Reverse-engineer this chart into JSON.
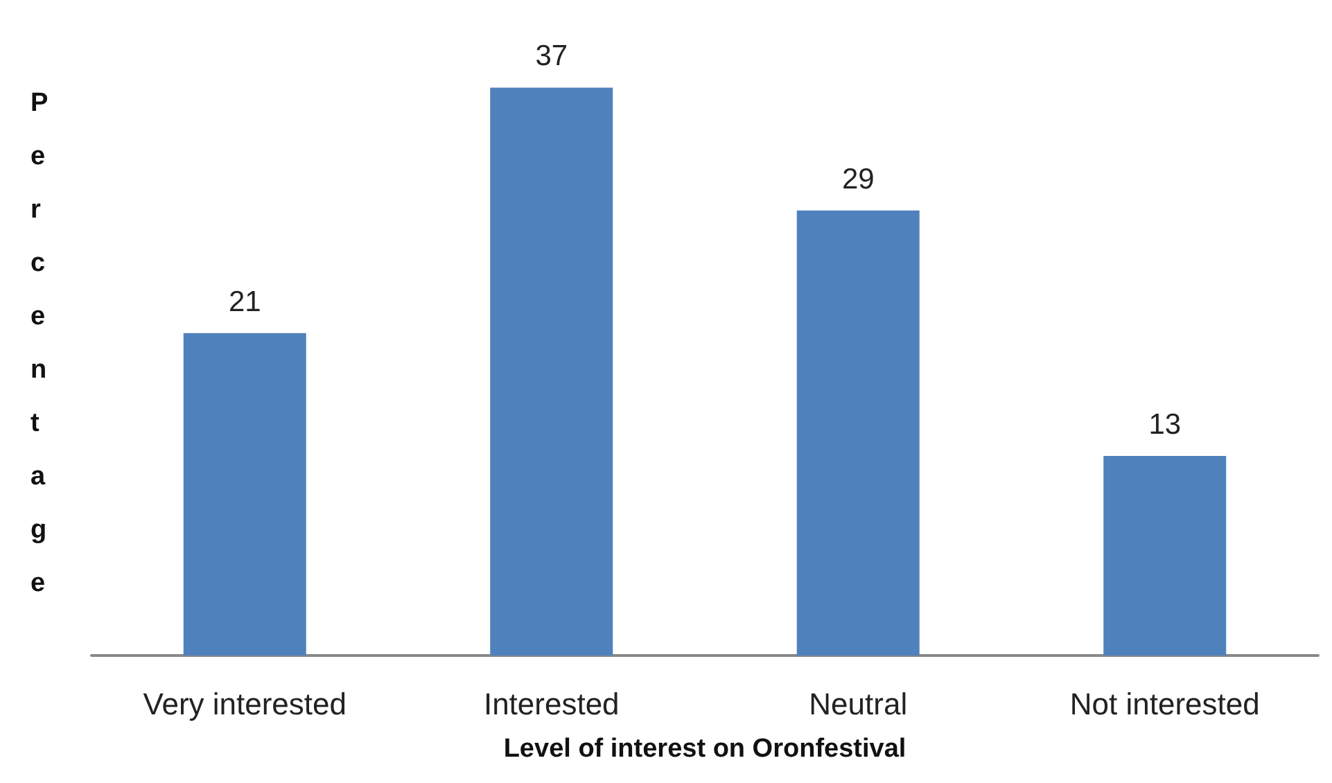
{
  "chart_data": {
    "type": "bar",
    "xlabel": "Level of interest on Oronfestival",
    "ylabel": "Percentage",
    "categories": [
      "Very interested",
      "Interested",
      "Neutral",
      "Not interested"
    ],
    "values": [
      21,
      37,
      29,
      13
    ],
    "color": "#4f81bd",
    "data_labels": true
  }
}
